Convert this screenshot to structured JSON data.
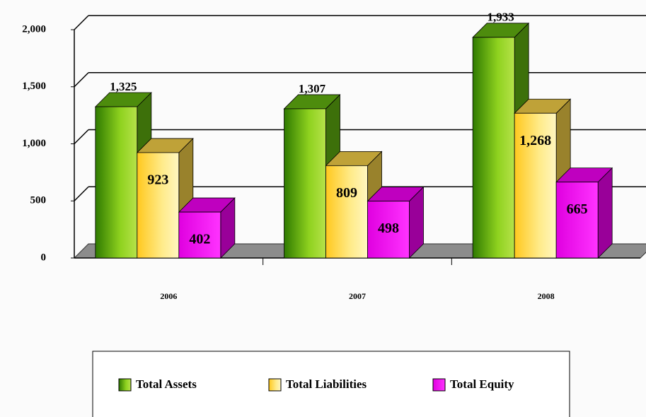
{
  "chart_data": {
    "type": "bar3d",
    "categories": [
      "2006",
      "2007",
      "2008"
    ],
    "series": [
      {
        "name": "Total Assets",
        "color": "#66bb11",
        "values": [
          1325,
          1307,
          1933
        ],
        "value_labels": [
          "1,325",
          "1,307",
          "1,933"
        ]
      },
      {
        "name": "Total Liabilities",
        "color": "#ffd84a",
        "values": [
          923,
          809,
          1268
        ],
        "value_labels": [
          "923",
          "809",
          "1,268"
        ]
      },
      {
        "name": "Total Equity",
        "color": "#ff00ff",
        "values": [
          402,
          498,
          665
        ],
        "value_labels": [
          "402",
          "498",
          "665"
        ]
      }
    ],
    "ylim": [
      0,
      2000
    ],
    "yticks": [
      0,
      500,
      {
        "value": 1000,
        "label": "1,000"
      },
      {
        "value": 1500,
        "label": "1,500"
      },
      {
        "value": 2000,
        "label": "2,000"
      }
    ],
    "grid": true,
    "legend": "bottom"
  }
}
